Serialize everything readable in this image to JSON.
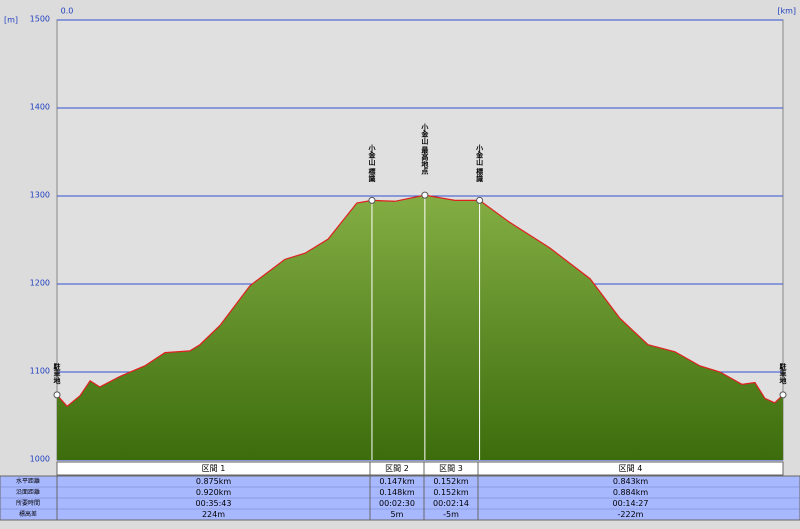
{
  "chart_data": {
    "type": "area",
    "y_unit": "[m]",
    "x_unit": "[km]",
    "x": [
      0,
      0.028,
      0.064,
      0.092,
      0.119,
      0.175,
      0.244,
      0.3,
      0.369,
      0.397,
      0.453,
      0.536,
      0.633,
      0.689,
      0.753,
      0.833,
      0.875,
      0.939,
      1.022,
      1.106,
      1.174,
      1.258,
      1.369,
      1.481,
      1.564,
      1.642,
      1.717,
      1.786,
      1.842,
      1.903,
      1.939,
      1.967,
      1.994,
      2.017
    ],
    "values": [
      1074,
      1061,
      1073,
      1090,
      1083,
      1095,
      1107,
      1122,
      1124,
      1131,
      1153,
      1198,
      1228,
      1235,
      1251,
      1292,
      1295,
      1294,
      1301,
      1295,
      1295,
      1270,
      1241,
      1206,
      1161,
      1131,
      1123,
      1107,
      1100,
      1086,
      1088,
      1070,
      1065,
      1074
    ],
    "color": "#6f9a30",
    "line_color": "#e02020",
    "xlim": [
      0,
      2.017
    ],
    "ylim": [
      1000,
      1500
    ],
    "xticks": [
      {
        "value": 0,
        "label": "0.0"
      }
    ],
    "yticks": [
      1000,
      1100,
      1200,
      1300,
      1400,
      1500
    ],
    "grid": true,
    "waypoints": [
      {
        "x": 0,
        "value": 1074,
        "label": "駐車地"
      },
      {
        "x": 0.875,
        "value": 1295,
        "label": "小金山 標識"
      },
      {
        "x": 1.022,
        "value": 1301,
        "label": "小金山 最高地点"
      },
      {
        "x": 1.174,
        "value": 1295,
        "label": "小金山 標識"
      },
      {
        "x": 2.017,
        "value": 1074,
        "label": "駐車地"
      }
    ]
  },
  "table": {
    "row_labels": [
      "水平距離",
      "沿面距離",
      "所要時間",
      "標高差"
    ],
    "columns": [
      {
        "header": "区間 1",
        "cells": [
          "0.875km",
          "0.920km",
          "00:35:43",
          "224m"
        ]
      },
      {
        "header": "区間 2",
        "cells": [
          "0.147km",
          "0.148km",
          "00:02:30",
          "5m"
        ]
      },
      {
        "header": "区間 3",
        "cells": [
          "0.152km",
          "0.152km",
          "00:02:14",
          "-5m"
        ]
      },
      {
        "header": "区間 4",
        "cells": [
          "0.843km",
          "0.884km",
          "00:14:27",
          "-222m"
        ]
      }
    ]
  }
}
